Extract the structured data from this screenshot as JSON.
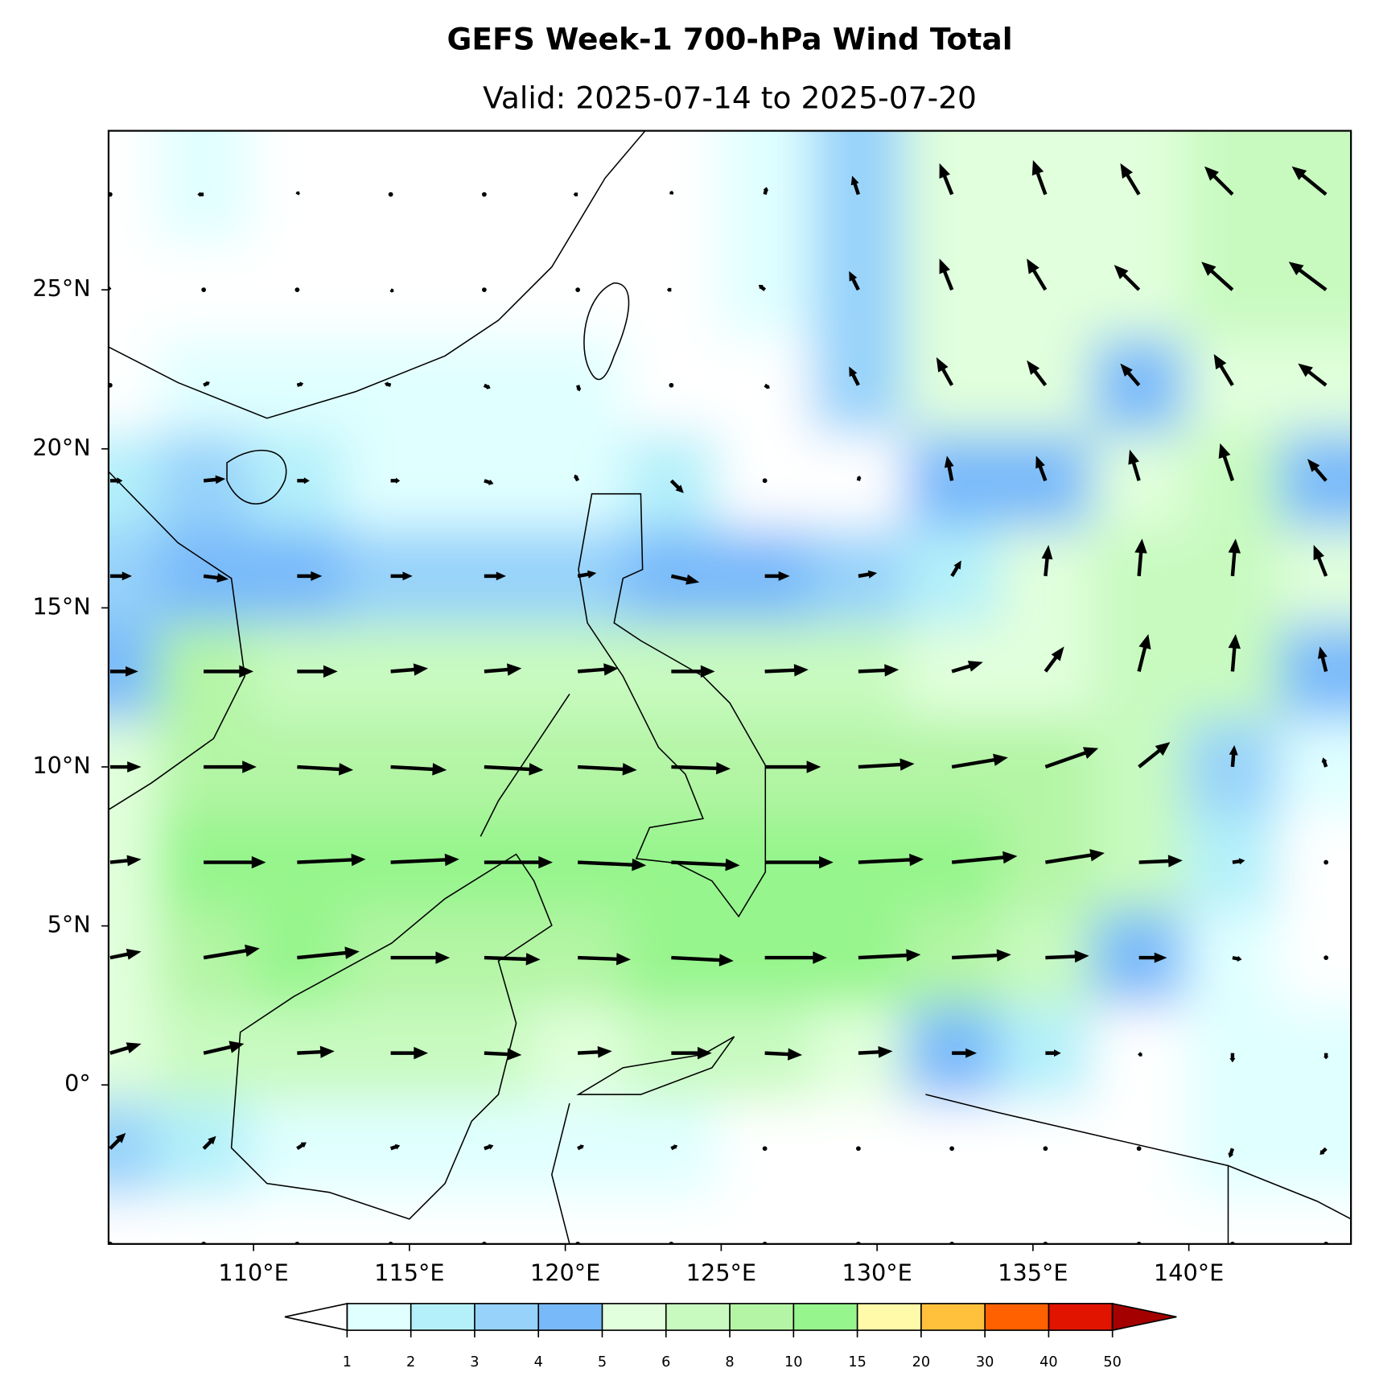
{
  "chart_data": {
    "type": "map",
    "title": "GEFS Week-1 700-hPa Wind Total",
    "subtitle": "Valid: 2025-07-14 to 2025-07-20",
    "xlim": [
      105.35,
      145.2
    ],
    "ylim": [
      -5,
      30
    ],
    "xticks": [
      {
        "value": 110,
        "label": "110°E"
      },
      {
        "value": 115,
        "label": "115°E"
      },
      {
        "value": 120,
        "label": "120°E"
      },
      {
        "value": 125,
        "label": "125°E"
      },
      {
        "value": 130,
        "label": "130°E"
      },
      {
        "value": 135,
        "label": "135°E"
      },
      {
        "value": 140,
        "label": "140°E"
      }
    ],
    "yticks": [
      {
        "value": 0,
        "label": "0°"
      },
      {
        "value": 5,
        "label": "5°N"
      },
      {
        "value": 10,
        "label": "10°N"
      },
      {
        "value": 15,
        "label": "15°N"
      },
      {
        "value": 20,
        "label": "20°N"
      },
      {
        "value": 25,
        "label": "25°N"
      }
    ],
    "colorbar": {
      "levels": [
        1,
        2,
        3,
        4,
        5,
        6,
        8,
        10,
        15,
        20,
        30,
        40,
        50
      ],
      "colors": [
        "#ffffff",
        "#e0ffff",
        "#b4f0fa",
        "#96d2fa",
        "#78b9fa",
        "#e1ffdc",
        "#c8fac0",
        "#b4f5a5",
        "#96f58c",
        "#fffaaa",
        "#ffc03c",
        "#ff6000",
        "#e11400",
        "#a50000"
      ]
    },
    "wind": {
      "lons": [
        105.4,
        108.4,
        111.4,
        114.4,
        117.4,
        120.4,
        123.4,
        126.4,
        129.4,
        132.4,
        135.4,
        138.4,
        141.4,
        144.4
      ],
      "lats": [
        28,
        25,
        22,
        19,
        16,
        13,
        10,
        7,
        4,
        1,
        -2,
        -5
      ],
      "u": [
        [
          0,
          -1,
          0.3,
          0,
          0,
          -0.7,
          0.1,
          0.3,
          -1,
          -2,
          -2,
          -3,
          -4.5,
          -5.5
        ],
        [
          -0.5,
          0,
          -0.5,
          0.5,
          0,
          0,
          -0.7,
          -1,
          -1.5,
          -2,
          -3,
          -4,
          -5,
          -6
        ],
        [
          -0.5,
          1,
          1,
          -1,
          1,
          0.3,
          0,
          0.8,
          -1.5,
          -2.5,
          -3,
          -3,
          -3,
          -4.5
        ],
        [
          2,
          3.5,
          2,
          1.5,
          1.5,
          -0.5,
          2,
          0.5,
          0.2,
          -0.8,
          -1.5,
          -1.5,
          -2,
          -3
        ],
        [
          3.5,
          4,
          4,
          3.5,
          3.5,
          3,
          4.5,
          4,
          3,
          1.5,
          0.5,
          0.5,
          0.5,
          -2
        ],
        [
          4.5,
          8,
          6.5,
          6,
          6,
          6.5,
          7,
          7,
          6.5,
          5,
          3,
          1.5,
          0.5,
          -1
        ],
        [
          5,
          8.5,
          9,
          9,
          9.5,
          9.5,
          9.5,
          9,
          9,
          9,
          8.5,
          5,
          0.3,
          -0.5
        ],
        [
          5,
          10,
          11,
          11,
          11,
          11,
          11,
          11,
          10.5,
          10.5,
          9.5,
          7,
          2,
          0.5
        ],
        [
          5,
          9,
          10,
          9.5,
          9,
          8.5,
          10,
          10,
          10,
          9.5,
          7,
          4.5,
          1.5,
          0
        ],
        [
          5,
          6.5,
          6,
          6,
          6,
          5.5,
          6.5,
          6,
          5.5,
          4,
          2.5,
          0.5,
          0,
          0
        ],
        [
          2.5,
          2,
          1.5,
          1.5,
          1.5,
          1,
          1,
          0.3,
          0.3,
          0.3,
          0.3,
          0,
          -0.5,
          -1
        ],
        [
          0.3,
          0.3,
          0.3,
          0,
          0,
          0,
          0,
          0,
          0,
          0,
          0,
          0,
          0.3,
          0.3
        ]
      ],
      "v": [
        [
          0,
          0,
          0.5,
          0,
          0,
          0,
          0.6,
          1.2,
          3,
          5,
          5.5,
          5,
          4.5,
          4.5
        ],
        [
          0.5,
          0.3,
          0,
          -0.3,
          0,
          0,
          0,
          0.8,
          3,
          5,
          5,
          4,
          4.5,
          4.5
        ],
        [
          0,
          0.5,
          0.3,
          0.3,
          -0.5,
          -1,
          0.5,
          -0.5,
          3,
          4.5,
          4,
          3.5,
          5,
          3.5
        ],
        [
          0,
          0.3,
          0,
          0,
          -0.5,
          1,
          -2,
          0,
          0.8,
          4,
          4,
          5,
          6,
          3.5
        ],
        [
          0,
          -0.5,
          0,
          0,
          0,
          0.5,
          -1,
          0,
          0.5,
          2.5,
          5,
          6,
          6,
          5
        ],
        [
          0,
          0,
          0,
          0.5,
          0.5,
          0.5,
          0,
          0.3,
          0.3,
          1.5,
          4,
          6,
          6,
          4
        ],
        [
          0,
          0,
          -0.5,
          -0.5,
          -0.5,
          -0.5,
          -0.3,
          0,
          0.5,
          1.5,
          3,
          4,
          3.5,
          1.5
        ],
        [
          0.5,
          0,
          0.5,
          0.5,
          0,
          -0.5,
          -0.5,
          0,
          0.5,
          1,
          1.5,
          0.3,
          0.3,
          0
        ],
        [
          1,
          1.5,
          1,
          0,
          -0.3,
          -0.3,
          -0.5,
          0,
          0.5,
          0.5,
          0.3,
          0,
          -0.3,
          0.3
        ],
        [
          1.5,
          1.5,
          0.3,
          0,
          -0.3,
          0.3,
          0,
          -0.3,
          0.3,
          0,
          0,
          -0.5,
          -1.5,
          -1
        ],
        [
          2.5,
          2,
          1,
          0.5,
          0.5,
          0.5,
          0.5,
          0,
          0,
          0,
          0,
          0,
          -1.5,
          -1
        ],
        [
          0,
          0.3,
          0.3,
          0,
          0,
          0,
          0,
          0,
          0,
          0,
          0,
          0,
          0,
          0
        ]
      ]
    }
  }
}
